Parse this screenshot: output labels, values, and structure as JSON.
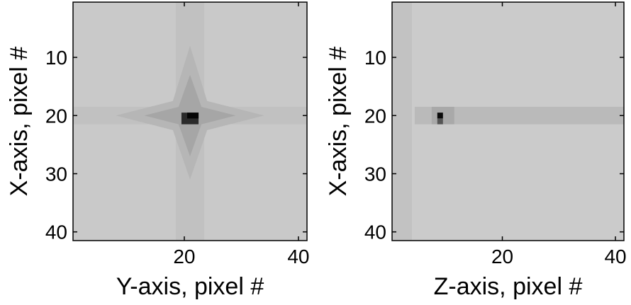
{
  "chart_data": [
    {
      "type": "image",
      "xlabel": "Y-axis, pixel #",
      "ylabel": "X-axis, pixel #",
      "xlim": [
        0.5,
        41.5
      ],
      "ylim": [
        0.5,
        41.5
      ],
      "y_reversed": true,
      "xticks": [
        20,
        40
      ],
      "yticks": [
        10,
        20,
        30,
        40
      ]
    },
    {
      "type": "image",
      "xlabel": "Z-axis, pixel #",
      "ylabel": "X-axis, pixel #",
      "xlim": [
        0.5,
        41.5
      ],
      "ylim": [
        0.5,
        41.5
      ],
      "y_reversed": true,
      "xticks": [
        20,
        40
      ],
      "yticks": [
        10,
        20,
        30,
        40
      ]
    }
  ]
}
